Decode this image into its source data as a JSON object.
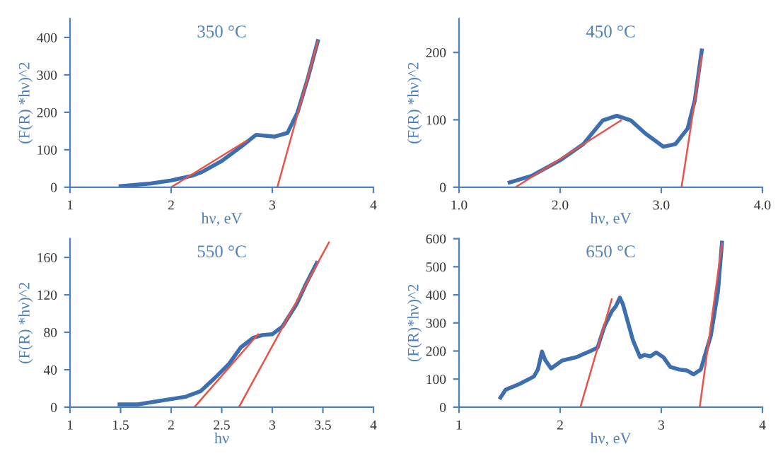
{
  "chart_data": [
    {
      "type": "line",
      "title": "350 °C",
      "xlabel": "hν, eV",
      "ylabel": "(F(R) *hν)^2",
      "xlim": [
        1,
        4
      ],
      "xticks": [
        1,
        2,
        3,
        4
      ],
      "ylim": [
        0,
        450
      ],
      "yticks": [
        0,
        100,
        200,
        300,
        400
      ],
      "grid": false,
      "legend": false,
      "series": [
        {
          "color": "#3d6fb0",
          "x": [
            1.5,
            1.8,
            2.0,
            2.2,
            2.3,
            2.5,
            2.7,
            2.84,
            3.02,
            3.15,
            3.25,
            3.35,
            3.45
          ],
          "values": [
            3,
            10,
            18,
            30,
            40,
            70,
            110,
            140,
            135,
            145,
            200,
            290,
            390
          ]
        },
        {
          "color": "#e8534a",
          "x": [
            2.0,
            2.75
          ],
          "values": [
            0,
            125
          ]
        },
        {
          "color": "#e8534a",
          "x": [
            3.05,
            3.45
          ],
          "values": [
            0,
            390
          ]
        }
      ]
    },
    {
      "type": "line",
      "title": "450 °C",
      "xlabel": "hν, eV",
      "ylabel": "(F(R) *hν)^2",
      "xlim": [
        1.0,
        4.0
      ],
      "xticks": [
        {
          "value": 1,
          "label": "1.0"
        },
        {
          "value": 2,
          "label": "2.0"
        },
        {
          "value": 3,
          "label": "3.0"
        },
        {
          "value": 4,
          "label": "4.0"
        }
      ],
      "ylim": [
        0,
        250
      ],
      "yticks": [
        0,
        100,
        200
      ],
      "grid": false,
      "legend": false,
      "series": [
        {
          "color": "#3d6fb0",
          "x": [
            1.5,
            1.72,
            2.0,
            2.23,
            2.42,
            2.56,
            2.7,
            2.84,
            3.02,
            3.14,
            3.26,
            3.33,
            3.4
          ],
          "values": [
            7,
            17,
            40,
            64,
            99,
            106,
            99,
            80,
            60,
            64,
            87,
            128,
            203
          ]
        },
        {
          "color": "#e8534a",
          "x": [
            1.56,
            2.6
          ],
          "values": [
            0,
            99
          ]
        },
        {
          "color": "#e8534a",
          "x": [
            3.2,
            3.4
          ],
          "values": [
            0,
            195
          ]
        }
      ]
    },
    {
      "type": "line",
      "title": "550 °C",
      "xlabel": "hν",
      "ylabel": "(F(R) *hν)^2",
      "xlim": [
        1,
        4
      ],
      "xticks": [
        1,
        1.5,
        2,
        2.5,
        3,
        3.5,
        4
      ],
      "ylim": [
        0,
        180
      ],
      "yticks": [
        0,
        40,
        80,
        120,
        160
      ],
      "grid": false,
      "legend": false,
      "series": [
        {
          "color": "#3d6fb0",
          "x": [
            1.49,
            1.67,
            1.9,
            2.14,
            2.29,
            2.43,
            2.57,
            2.69,
            2.81,
            2.9,
            3.0,
            3.1,
            3.24,
            3.33,
            3.44
          ],
          "values": [
            3,
            3,
            7,
            11,
            17,
            31,
            46,
            64,
            74,
            77,
            78,
            86,
            110,
            131,
            154
          ]
        },
        {
          "color": "#e8534a",
          "x": [
            2.23,
            2.86
          ],
          "values": [
            0,
            78
          ]
        },
        {
          "color": "#e8534a",
          "x": [
            2.67,
            3.56
          ],
          "values": [
            0,
            176
          ]
        }
      ]
    },
    {
      "type": "line",
      "title": "650 °C",
      "xlabel": "hν, eV",
      "ylabel": "(F(R)*hν)^2",
      "xlim": [
        1,
        4
      ],
      "xticks": [
        1,
        2,
        3,
        4
      ],
      "ylim": [
        0,
        600
      ],
      "yticks": [
        0,
        100,
        200,
        300,
        400,
        500,
        600
      ],
      "grid": false,
      "legend": false,
      "series": [
        {
          "color": "#3d6fb0",
          "x": [
            1.41,
            1.46,
            1.6,
            1.74,
            1.78,
            1.82,
            1.85,
            1.91,
            2.02,
            2.16,
            2.3,
            2.37,
            2.44,
            2.51,
            2.55,
            2.59,
            2.62,
            2.72,
            2.79,
            2.83,
            2.89,
            2.95,
            3.02,
            3.09,
            3.18,
            3.25,
            3.32,
            3.39,
            3.49,
            3.56,
            3.6
          ],
          "values": [
            34,
            62,
            83,
            109,
            134,
            198,
            169,
            138,
            166,
            178,
            200,
            212,
            290,
            341,
            359,
            390,
            367,
            238,
            178,
            186,
            181,
            195,
            178,
            143,
            134,
            131,
            117,
            134,
            255,
            410,
            586
          ]
        },
        {
          "color": "#e8534a",
          "x": [
            2.2,
            2.51
          ],
          "values": [
            0,
            384
          ]
        },
        {
          "color": "#e8534a",
          "x": [
            3.38,
            3.6
          ],
          "values": [
            0,
            583
          ]
        }
      ]
    }
  ]
}
